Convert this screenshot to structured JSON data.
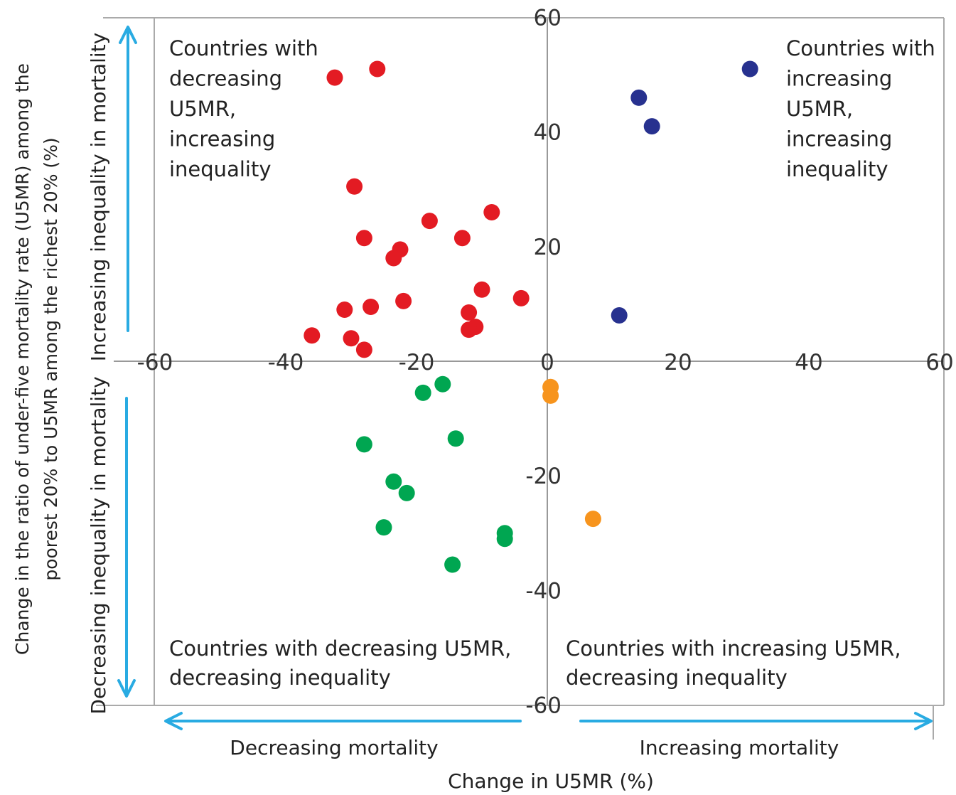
{
  "chart_data": {
    "type": "scatter",
    "xlabel": "Change in U5MR  (%)",
    "ylabel_lines": [
      "Change in the ratio of under-five mortality rate (U5MR) among the",
      "poorest 20% to U5MR among the richest 20% (%)"
    ],
    "xlim": [
      -60,
      60
    ],
    "ylim": [
      -60,
      60
    ],
    "x_ticks": [
      "-60",
      "-40",
      "-20",
      "0",
      "20",
      "40",
      "60"
    ],
    "y_ticks": [
      "60",
      "40",
      "20",
      "-20",
      "-40",
      "-60"
    ],
    "grid": false,
    "series": [
      {
        "color": "#e31b23",
        "points": [
          [
            -26,
            51
          ],
          [
            -32.5,
            49.5
          ],
          [
            -29.5,
            30.5
          ],
          [
            -8.5,
            26
          ],
          [
            -18,
            24.5
          ],
          [
            -28,
            21.5
          ],
          [
            -13,
            21.5
          ],
          [
            -22.5,
            19.5
          ],
          [
            -23.5,
            18
          ],
          [
            -10,
            12.5
          ],
          [
            -4,
            11
          ],
          [
            -22,
            10.5
          ],
          [
            -27,
            9.5
          ],
          [
            -31,
            9
          ],
          [
            -12,
            8.5
          ],
          [
            -11,
            6
          ],
          [
            -12,
            5.5
          ],
          [
            -36,
            4.5
          ],
          [
            -30,
            4
          ],
          [
            -28,
            2
          ]
        ]
      },
      {
        "color": "#27318f",
        "points": [
          [
            31,
            51
          ],
          [
            14,
            46
          ],
          [
            16,
            41
          ],
          [
            11,
            8
          ]
        ]
      },
      {
        "color": "#00a651",
        "points": [
          [
            -16,
            -4
          ],
          [
            -19,
            -5.5
          ],
          [
            -14,
            -13.5
          ],
          [
            -28,
            -14.5
          ],
          [
            -23.5,
            -21
          ],
          [
            -21.5,
            -23
          ],
          [
            -25,
            -29
          ],
          [
            -6.5,
            -30
          ],
          [
            -6.5,
            -31
          ],
          [
            -14.5,
            -35.5
          ]
        ]
      },
      {
        "color": "#f7941d",
        "points": [
          [
            0.5,
            -4.5
          ],
          [
            0.5,
            -6
          ],
          [
            7,
            -27.5
          ]
        ]
      }
    ],
    "annotations": {
      "top_left": [
        "Countries with",
        "decreasing",
        "U5MR,",
        "increasing",
        "inequality"
      ],
      "top_right": [
        "Countries with",
        "increasing",
        "U5MR,",
        "increasing",
        "inequality"
      ],
      "bottom_left": [
        "Countries with decreasing U5MR,",
        "decreasing inequality"
      ],
      "bottom_right": [
        "Countries with  increasing U5MR,",
        "decreasing inequality"
      ],
      "arrow_up": "Increasing inequality in mortality",
      "arrow_down": "Decreasing inequality in mortality",
      "arrow_left": "Decreasing mortality",
      "arrow_right": "Increasing mortality"
    },
    "colors": {
      "arrow": "#29abe2",
      "frame": "#aaaaaa"
    }
  }
}
